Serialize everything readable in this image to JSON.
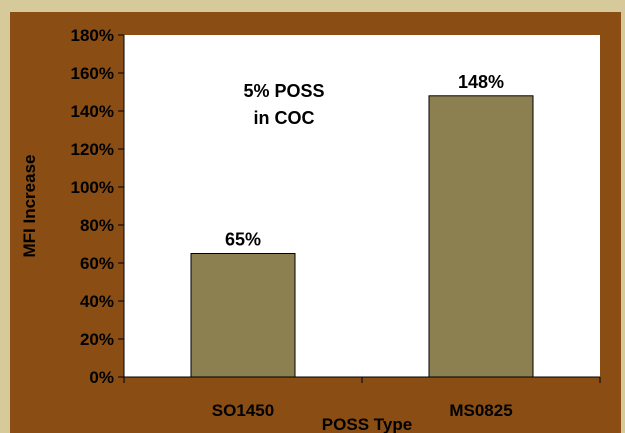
{
  "chart_data": {
    "type": "bar",
    "categories": [
      "SO1450",
      "MS0825"
    ],
    "values": [
      65,
      148
    ],
    "data_labels": [
      "65%",
      "148%"
    ],
    "xlabel": "POSS Type",
    "ylabel": "MFI Increase",
    "ylim": [
      0,
      180
    ],
    "y_ticks": [
      "0%",
      "20%",
      "40%",
      "60%",
      "80%",
      "100%",
      "120%",
      "140%",
      "160%",
      "180%"
    ],
    "annotation": [
      "5% POSS",
      "in COC"
    ],
    "grid": false,
    "legend": "none",
    "colors": {
      "bar": "#8c8050",
      "bar_stroke": "#000000",
      "plot_bg": "#ffffff",
      "panel_bg": "#8a4d14",
      "outer_bg": "#d6c99a"
    }
  }
}
